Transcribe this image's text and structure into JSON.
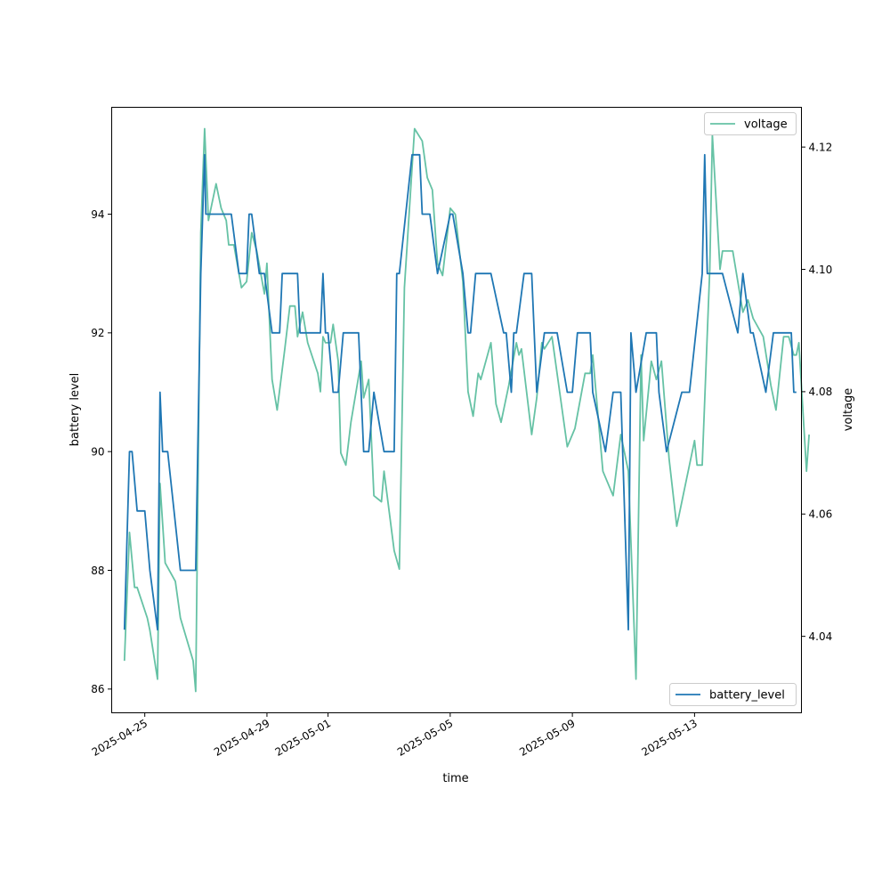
{
  "chart_data": {
    "type": "line",
    "xlabel": "time",
    "x_tick_labels": [
      "2025-04-25",
      "2025-04-29",
      "2025-05-01",
      "2025-05-05",
      "2025-05-09",
      "2025-05-13"
    ],
    "x_tick_dates": [
      "2025-04-25",
      "2025-04-29",
      "2025-05-01",
      "2025-05-05",
      "2025-05-09",
      "2025-05-13"
    ],
    "xlim": [
      "2025-04-23T22:00",
      "2025-05-16T12:00"
    ],
    "left_axis": {
      "ylabel": "battery level",
      "ylim": [
        85.6,
        95.8
      ],
      "ticks": [
        86,
        88,
        90,
        92,
        94
      ],
      "tick_labels": [
        "86",
        "88",
        "90",
        "92",
        "94"
      ]
    },
    "right_axis": {
      "ylabel": "voltage",
      "ylim": [
        4.0275,
        4.1265
      ],
      "ticks": [
        4.04,
        4.06,
        4.08,
        4.1,
        4.12
      ],
      "tick_labels": [
        "4.04",
        "4.06",
        "4.08",
        "4.10",
        "4.12"
      ]
    },
    "grid": false,
    "series": [
      {
        "name": "battery_level",
        "axis": "left",
        "color": "#1f77b4",
        "legend_position": "lower-right",
        "points": [
          [
            "2025-04-24T08:00",
            87
          ],
          [
            "2025-04-24T12:00",
            90
          ],
          [
            "2025-04-24T14:00",
            90
          ],
          [
            "2025-04-24T18:00",
            89
          ],
          [
            "2025-04-25T00:00",
            89
          ],
          [
            "2025-04-25T04:00",
            88
          ],
          [
            "2025-04-25T10:00",
            87
          ],
          [
            "2025-04-25T12:00",
            91
          ],
          [
            "2025-04-25T14:00",
            90
          ],
          [
            "2025-04-25T18:00",
            90
          ],
          [
            "2025-04-26T04:00",
            88
          ],
          [
            "2025-04-26T16:00",
            88
          ],
          [
            "2025-04-26T20:00",
            93
          ],
          [
            "2025-04-26T23:00",
            95
          ],
          [
            "2025-04-27T00:00",
            94
          ],
          [
            "2025-04-27T20:00",
            94
          ],
          [
            "2025-04-28T02:00",
            93
          ],
          [
            "2025-04-28T08:00",
            93
          ],
          [
            "2025-04-28T10:00",
            94
          ],
          [
            "2025-04-28T12:00",
            94
          ],
          [
            "2025-04-28T18:00",
            93
          ],
          [
            "2025-04-28T22:00",
            93
          ],
          [
            "2025-04-29T04:00",
            92
          ],
          [
            "2025-04-29T10:00",
            92
          ],
          [
            "2025-04-29T12:00",
            93
          ],
          [
            "2025-04-29T18:00",
            93
          ],
          [
            "2025-04-30T00:00",
            93
          ],
          [
            "2025-04-30T02:00",
            92
          ],
          [
            "2025-04-30T18:00",
            92
          ],
          [
            "2025-04-30T20:00",
            93
          ],
          [
            "2025-04-30T22:00",
            92
          ],
          [
            "2025-05-01T00:00",
            92
          ],
          [
            "2025-05-01T04:00",
            91
          ],
          [
            "2025-05-01T08:00",
            91
          ],
          [
            "2025-05-01T12:00",
            92
          ],
          [
            "2025-05-02T00:00",
            92
          ],
          [
            "2025-05-02T04:00",
            90
          ],
          [
            "2025-05-02T08:00",
            90
          ],
          [
            "2025-05-02T12:00",
            91
          ],
          [
            "2025-05-02T20:00",
            90
          ],
          [
            "2025-05-03T04:00",
            90
          ],
          [
            "2025-05-03T06:00",
            93
          ],
          [
            "2025-05-03T08:00",
            93
          ],
          [
            "2025-05-03T18:00",
            95
          ],
          [
            "2025-05-04T00:00",
            95
          ],
          [
            "2025-05-04T02:00",
            94
          ],
          [
            "2025-05-04T08:00",
            94
          ],
          [
            "2025-05-04T14:00",
            93
          ],
          [
            "2025-05-05T00:00",
            94
          ],
          [
            "2025-05-05T02:00",
            94
          ],
          [
            "2025-05-05T10:00",
            93
          ],
          [
            "2025-05-05T14:00",
            92
          ],
          [
            "2025-05-05T16:00",
            92
          ],
          [
            "2025-05-05T20:00",
            93
          ],
          [
            "2025-05-06T08:00",
            93
          ],
          [
            "2025-05-06T18:00",
            92
          ],
          [
            "2025-05-06T20:00",
            92
          ],
          [
            "2025-05-07T00:00",
            91
          ],
          [
            "2025-05-07T02:00",
            92
          ],
          [
            "2025-05-07T04:00",
            92
          ],
          [
            "2025-05-07T10:00",
            93
          ],
          [
            "2025-05-07T16:00",
            93
          ],
          [
            "2025-05-07T20:00",
            91
          ],
          [
            "2025-05-08T02:00",
            92
          ],
          [
            "2025-05-08T12:00",
            92
          ],
          [
            "2025-05-08T20:00",
            91
          ],
          [
            "2025-05-09T00:00",
            91
          ],
          [
            "2025-05-09T04:00",
            92
          ],
          [
            "2025-05-09T14:00",
            92
          ],
          [
            "2025-05-09T16:00",
            91
          ],
          [
            "2025-05-10T02:00",
            90
          ],
          [
            "2025-05-10T08:00",
            91
          ],
          [
            "2025-05-10T14:00",
            91
          ],
          [
            "2025-05-10T20:00",
            87
          ],
          [
            "2025-05-10T22:00",
            92
          ],
          [
            "2025-05-11T02:00",
            91
          ],
          [
            "2025-05-11T10:00",
            92
          ],
          [
            "2025-05-11T18:00",
            92
          ],
          [
            "2025-05-11T20:00",
            91
          ],
          [
            "2025-05-12T02:00",
            90
          ],
          [
            "2025-05-12T14:00",
            91
          ],
          [
            "2025-05-12T20:00",
            91
          ],
          [
            "2025-05-13T06:00",
            93
          ],
          [
            "2025-05-13T08:00",
            95
          ],
          [
            "2025-05-13T10:00",
            93
          ],
          [
            "2025-05-13T16:00",
            93
          ],
          [
            "2025-05-13T22:00",
            93
          ],
          [
            "2025-05-14T10:00",
            92
          ],
          [
            "2025-05-14T14:00",
            93
          ],
          [
            "2025-05-14T20:00",
            92
          ],
          [
            "2025-05-14T22:00",
            92
          ],
          [
            "2025-05-15T08:00",
            91
          ],
          [
            "2025-05-15T14:00",
            92
          ],
          [
            "2025-05-16T04:00",
            92
          ],
          [
            "2025-05-16T06:00",
            91
          ],
          [
            "2025-05-16T08:00",
            91
          ]
        ]
      },
      {
        "name": "voltage",
        "axis": "right",
        "color": "#66c2a5",
        "legend_position": "upper-right",
        "points": [
          [
            "2025-04-24T08:00",
            4.036
          ],
          [
            "2025-04-24T12:00",
            4.057
          ],
          [
            "2025-04-24T16:00",
            4.048
          ],
          [
            "2025-04-24T18:00",
            4.048
          ],
          [
            "2025-04-25T02:00",
            4.043
          ],
          [
            "2025-04-25T04:00",
            4.041
          ],
          [
            "2025-04-25T10:00",
            4.033
          ],
          [
            "2025-04-25T12:00",
            4.065
          ],
          [
            "2025-04-25T16:00",
            4.052
          ],
          [
            "2025-04-26T00:00",
            4.049
          ],
          [
            "2025-04-26T04:00",
            4.043
          ],
          [
            "2025-04-26T14:00",
            4.036
          ],
          [
            "2025-04-26T16:00",
            4.031
          ],
          [
            "2025-04-26T20:00",
            4.106
          ],
          [
            "2025-04-26T23:00",
            4.123
          ],
          [
            "2025-04-27T02:00",
            4.108
          ],
          [
            "2025-04-27T08:00",
            4.114
          ],
          [
            "2025-04-27T12:00",
            4.11
          ],
          [
            "2025-04-27T16:00",
            4.108
          ],
          [
            "2025-04-27T18:00",
            4.104
          ],
          [
            "2025-04-27T22:00",
            4.104
          ],
          [
            "2025-04-28T04:00",
            4.097
          ],
          [
            "2025-04-28T08:00",
            4.098
          ],
          [
            "2025-04-28T12:00",
            4.106
          ],
          [
            "2025-04-28T16:00",
            4.103
          ],
          [
            "2025-04-28T22:00",
            4.096
          ],
          [
            "2025-04-29T00:00",
            4.101
          ],
          [
            "2025-04-29T04:00",
            4.082
          ],
          [
            "2025-04-29T08:00",
            4.077
          ],
          [
            "2025-04-29T14:00",
            4.087
          ],
          [
            "2025-04-29T18:00",
            4.094
          ],
          [
            "2025-04-29T22:00",
            4.094
          ],
          [
            "2025-04-30T00:00",
            4.089
          ],
          [
            "2025-04-30T04:00",
            4.093
          ],
          [
            "2025-04-30T08:00",
            4.088
          ],
          [
            "2025-04-30T16:00",
            4.083
          ],
          [
            "2025-04-30T18:00",
            4.08
          ],
          [
            "2025-04-30T20:00",
            4.089
          ],
          [
            "2025-04-30T22:00",
            4.088
          ],
          [
            "2025-05-01T02:00",
            4.088
          ],
          [
            "2025-05-01T04:00",
            4.091
          ],
          [
            "2025-05-01T08:00",
            4.085
          ],
          [
            "2025-05-01T10:00",
            4.07
          ],
          [
            "2025-05-01T14:00",
            4.068
          ],
          [
            "2025-05-01T18:00",
            4.075
          ],
          [
            "2025-05-02T02:00",
            4.085
          ],
          [
            "2025-05-02T04:00",
            4.079
          ],
          [
            "2025-05-02T08:00",
            4.082
          ],
          [
            "2025-05-02T12:00",
            4.063
          ],
          [
            "2025-05-02T18:00",
            4.062
          ],
          [
            "2025-05-02T20:00",
            4.067
          ],
          [
            "2025-05-03T04:00",
            4.054
          ],
          [
            "2025-05-03T08:00",
            4.051
          ],
          [
            "2025-05-03T12:00",
            4.097
          ],
          [
            "2025-05-03T20:00",
            4.123
          ],
          [
            "2025-05-04T02:00",
            4.121
          ],
          [
            "2025-05-04T06:00",
            4.115
          ],
          [
            "2025-05-04T10:00",
            4.113
          ],
          [
            "2025-05-04T14:00",
            4.101
          ],
          [
            "2025-05-04T18:00",
            4.099
          ],
          [
            "2025-05-05T00:00",
            4.11
          ],
          [
            "2025-05-05T04:00",
            4.109
          ],
          [
            "2025-05-05T10:00",
            4.098
          ],
          [
            "2025-05-05T14:00",
            4.08
          ],
          [
            "2025-05-05T18:00",
            4.076
          ],
          [
            "2025-05-05T22:00",
            4.083
          ],
          [
            "2025-05-06T00:00",
            4.082
          ],
          [
            "2025-05-06T08:00",
            4.088
          ],
          [
            "2025-05-06T12:00",
            4.078
          ],
          [
            "2025-05-06T16:00",
            4.075
          ],
          [
            "2025-05-06T22:00",
            4.081
          ],
          [
            "2025-05-07T04:00",
            4.088
          ],
          [
            "2025-05-07T06:00",
            4.086
          ],
          [
            "2025-05-07T08:00",
            4.087
          ],
          [
            "2025-05-07T16:00",
            4.073
          ],
          [
            "2025-05-07T20:00",
            4.079
          ],
          [
            "2025-05-08T00:00",
            4.088
          ],
          [
            "2025-05-08T02:00",
            4.087
          ],
          [
            "2025-05-08T08:00",
            4.089
          ],
          [
            "2025-05-08T20:00",
            4.071
          ],
          [
            "2025-05-09T02:00",
            4.074
          ],
          [
            "2025-05-09T10:00",
            4.083
          ],
          [
            "2025-05-09T14:00",
            4.083
          ],
          [
            "2025-05-09T16:00",
            4.086
          ],
          [
            "2025-05-10T00:00",
            4.067
          ],
          [
            "2025-05-10T08:00",
            4.063
          ],
          [
            "2025-05-10T14:00",
            4.073
          ],
          [
            "2025-05-10T20:00",
            4.067
          ],
          [
            "2025-05-11T02:00",
            4.033
          ],
          [
            "2025-05-11T06:00",
            4.086
          ],
          [
            "2025-05-11T08:00",
            4.072
          ],
          [
            "2025-05-11T14:00",
            4.085
          ],
          [
            "2025-05-11T18:00",
            4.082
          ],
          [
            "2025-05-11T22:00",
            4.085
          ],
          [
            "2025-05-12T04:00",
            4.069
          ],
          [
            "2025-05-12T10:00",
            4.058
          ],
          [
            "2025-05-12T18:00",
            4.066
          ],
          [
            "2025-05-13T00:00",
            4.072
          ],
          [
            "2025-05-13T02:00",
            4.068
          ],
          [
            "2025-05-13T06:00",
            4.068
          ],
          [
            "2025-05-13T12:00",
            4.1
          ],
          [
            "2025-05-13T14:00",
            4.122
          ],
          [
            "2025-05-13T20:00",
            4.1
          ],
          [
            "2025-05-13T22:00",
            4.103
          ],
          [
            "2025-05-14T06:00",
            4.103
          ],
          [
            "2025-05-14T14:00",
            4.093
          ],
          [
            "2025-05-14T18:00",
            4.095
          ],
          [
            "2025-05-14T22:00",
            4.092
          ],
          [
            "2025-05-15T06:00",
            4.089
          ],
          [
            "2025-05-15T12:00",
            4.081
          ],
          [
            "2025-05-15T16:00",
            4.077
          ],
          [
            "2025-05-15T22:00",
            4.089
          ],
          [
            "2025-05-16T02:00",
            4.089
          ],
          [
            "2025-05-16T06:00",
            4.086
          ],
          [
            "2025-05-16T08:00",
            4.086
          ],
          [
            "2025-05-16T10:00",
            4.088
          ],
          [
            "2025-05-16T16:00",
            4.067
          ],
          [
            "2025-05-16T18:00",
            4.073
          ]
        ]
      }
    ]
  }
}
